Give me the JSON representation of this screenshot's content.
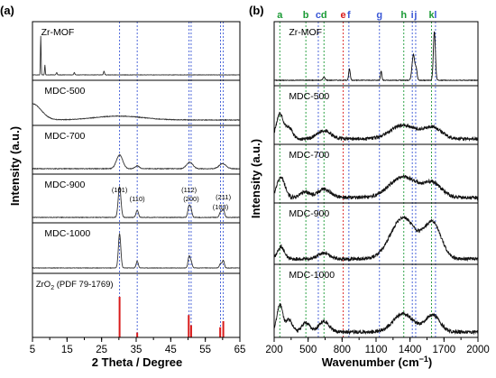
{
  "chart_data": [
    {
      "type": "line",
      "panel_label": "(a)",
      "xlabel": "2 Theta / Degree",
      "ylabel": "Intensity (a.u.)",
      "xlim": [
        5,
        65
      ],
      "x_ticks": [
        5,
        15,
        25,
        35,
        45,
        55,
        65
      ],
      "x_minor_step": 5,
      "ref_lines": [
        30.2,
        35.3,
        50.3,
        50.9,
        59.4,
        60.2
      ],
      "ref_line_color": "#3a57d6",
      "peak_labels": [
        {
          "text": "(101)",
          "x": 30.2,
          "dy": -18
        },
        {
          "text": "(110)",
          "x": 35.3,
          "dy": -8
        },
        {
          "text": "(112)",
          "x": 50.3,
          "dy": -18
        },
        {
          "text": "(200)",
          "x": 50.9,
          "dy": -8
        },
        {
          "text": "(103)",
          "x": 59.4,
          "dy": 1
        },
        {
          "text": "(211)",
          "x": 60.2,
          "dy": -10
        }
      ],
      "series": [
        {
          "name": "Zr-MOF",
          "label_text": "Zr-MOF",
          "label_x": 7.5,
          "label_row": 0,
          "color": "#333333",
          "peaks": [
            [
              7.4,
              0.85,
              0.1
            ],
            [
              8.6,
              0.22,
              0.1
            ],
            [
              12.0,
              0.05,
              0.15
            ],
            [
              17.1,
              0.05,
              0.15
            ],
            [
              25.7,
              0.08,
              0.15
            ]
          ]
        },
        {
          "name": "MDC-500",
          "label_text": "MDC-500",
          "label_x": 8.5,
          "label_row": 1,
          "color": "#333333",
          "peaks": [
            [
              5.0,
              0.5,
              2.5
            ],
            [
              30.0,
              0.12,
              7.0
            ]
          ]
        },
        {
          "name": "MDC-700",
          "label_text": "MDC-700",
          "label_x": 8.5,
          "label_row": 2,
          "color": "#333333",
          "peaks": [
            [
              30.2,
              0.38,
              0.9
            ],
            [
              35.3,
              0.08,
              0.6
            ],
            [
              50.5,
              0.18,
              0.9
            ],
            [
              60.0,
              0.14,
              1.0
            ]
          ]
        },
        {
          "name": "MDC-900",
          "label_text": "MDC-900",
          "label_x": 8.5,
          "label_row": 3,
          "color": "#333333",
          "peaks": [
            [
              30.2,
              0.85,
              0.4
            ],
            [
              35.3,
              0.2,
              0.35
            ],
            [
              50.3,
              0.32,
              0.35
            ],
            [
              50.9,
              0.18,
              0.3
            ],
            [
              59.4,
              0.14,
              0.35
            ],
            [
              60.2,
              0.22,
              0.35
            ]
          ]
        },
        {
          "name": "MDC-1000",
          "label_text": "MDC-1000",
          "label_x": 8.5,
          "label_row": 4,
          "color": "#333333",
          "peaks": [
            [
              30.2,
              0.9,
              0.35
            ],
            [
              35.3,
              0.18,
              0.3
            ],
            [
              50.3,
              0.3,
              0.3
            ],
            [
              50.9,
              0.16,
              0.3
            ],
            [
              59.4,
              0.12,
              0.3
            ],
            [
              60.2,
              0.2,
              0.3
            ]
          ]
        }
      ],
      "reference_pattern": {
        "name": "ZrO2",
        "label_main": "ZrO",
        "label_sub": "2",
        "label_rest": " (PDF 79-1769)",
        "label_x": 6.0,
        "label_row": 5,
        "color": "#d91b1b",
        "sticks": [
          [
            30.2,
            1.0
          ],
          [
            35.3,
            0.12
          ],
          [
            50.2,
            0.55
          ],
          [
            50.9,
            0.3
          ],
          [
            59.3,
            0.25
          ],
          [
            60.2,
            0.4
          ]
        ]
      }
    },
    {
      "type": "line",
      "panel_label": "(b)",
      "xlabel": "Wavenumber (cm",
      "xlabel_sup": "−1",
      "xlabel_tail": ")",
      "ylabel": "Intensity (a.u.)",
      "xlim": [
        200,
        2000
      ],
      "x_ticks": [
        200,
        500,
        800,
        1100,
        1400,
        1700,
        2000
      ],
      "x_minor_step": 150,
      "band_markers": [
        {
          "text": "a",
          "x": 250,
          "color": "#1a9a35"
        },
        {
          "text": "b",
          "x": 480,
          "color": "#1a9a35"
        },
        {
          "text": "c",
          "x": 590,
          "color": "#3a57d6"
        },
        {
          "text": "d",
          "x": 640,
          "color": "#1a9a35"
        },
        {
          "text": "e",
          "x": 810,
          "color": "#d91b1b"
        },
        {
          "text": "f",
          "x": 860,
          "color": "#3a57d6"
        },
        {
          "text": "g",
          "x": 1130,
          "color": "#3a57d6"
        },
        {
          "text": "h",
          "x": 1345,
          "color": "#1a9a35"
        },
        {
          "text": "i",
          "x": 1420,
          "color": "#3a57d6"
        },
        {
          "text": "j",
          "x": 1450,
          "color": "#3a57d6"
        },
        {
          "text": "k",
          "x": 1590,
          "color": "#1a9a35"
        },
        {
          "text": "l",
          "x": 1625,
          "color": "#3a57d6"
        }
      ],
      "series": [
        {
          "name": "Zr-MOF",
          "label_text": "Zr-MOF",
          "label_x": 330,
          "label_row": 0,
          "color": "#111111",
          "peaks": [
            [
              640,
              0.06,
              10
            ],
            [
              865,
              0.22,
              7
            ],
            [
              1145,
              0.18,
              6
            ],
            [
              1430,
              0.5,
              12
            ],
            [
              1455,
              0.2,
              8
            ],
            [
              1615,
              0.95,
              9
            ]
          ]
        },
        {
          "name": "MDC-500",
          "label_text": "MDC-500",
          "label_x": 330,
          "label_row": 1,
          "color": "#111111",
          "peaks": [
            [
              250,
              0.55,
              30
            ],
            [
              330,
              0.25,
              30
            ],
            [
              640,
              0.18,
              60
            ],
            [
              1340,
              0.3,
              110
            ],
            [
              1600,
              0.25,
              80
            ]
          ]
        },
        {
          "name": "MDC-700",
          "label_text": "MDC-700",
          "label_x": 330,
          "label_row": 2,
          "color": "#111111",
          "peaks": [
            [
              260,
              0.45,
              35
            ],
            [
              470,
              0.12,
              40
            ],
            [
              640,
              0.18,
              60
            ],
            [
              1340,
              0.45,
              120
            ],
            [
              1600,
              0.3,
              80
            ]
          ]
        },
        {
          "name": "MDC-900",
          "label_text": "MDC-900",
          "label_x": 330,
          "label_row": 3,
          "color": "#111111",
          "peaks": [
            [
              260,
              0.25,
              30
            ],
            [
              640,
              0.12,
              50
            ],
            [
              1340,
              0.85,
              110
            ],
            [
              1600,
              0.72,
              75
            ]
          ]
        },
        {
          "name": "MDC-1000",
          "label_text": "MDC-1000",
          "label_x": 330,
          "label_row": 4,
          "color": "#111111",
          "peaks": [
            [
              250,
              0.45,
              25
            ],
            [
              330,
              0.2,
              30
            ],
            [
              480,
              0.15,
              35
            ],
            [
              640,
              0.18,
              45
            ],
            [
              1340,
              0.3,
              90
            ],
            [
              1600,
              0.28,
              65
            ]
          ]
        }
      ]
    }
  ]
}
